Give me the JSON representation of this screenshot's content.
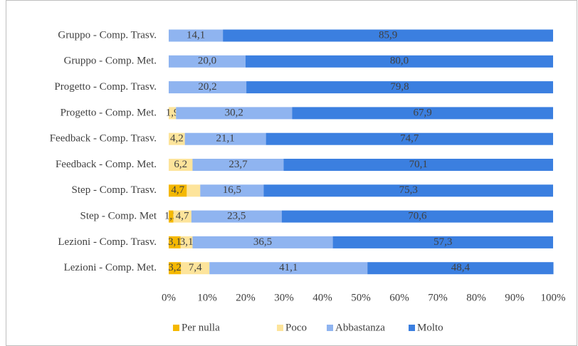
{
  "chart_data": {
    "type": "stacked_barh",
    "categories": [
      "Gruppo - Comp. Trasv.",
      "Gruppo - Comp. Met.",
      "Progetto - Comp. Trasv.",
      "Progetto - Comp. Met.",
      "Feedback - Comp. Trasv.",
      "Feedback - Comp. Met.",
      "Step - Comp. Trasv.",
      "Step - Comp. Met",
      "Lezioni - Comp. Trasv.",
      "Lezioni - Comp. Met."
    ],
    "series": [
      {
        "name": "Per nulla",
        "color": "#f5b800",
        "values": [
          0,
          0,
          0,
          0,
          0,
          0,
          4.7,
          1.2,
          3.1,
          3.2
        ],
        "value_labels": [
          null,
          null,
          null,
          null,
          null,
          null,
          "4,7",
          "1,2",
          "3,1",
          "3,2"
        ]
      },
      {
        "name": "Poco",
        "color": "#fde49b",
        "values": [
          0,
          0,
          0,
          1.9,
          4.2,
          6.2,
          3.5,
          4.7,
          3.1,
          7.4
        ],
        "value_labels": [
          null,
          null,
          null,
          "1,9",
          "4,2",
          "6,2",
          null,
          "4,7",
          "3,1",
          "7,4"
        ]
      },
      {
        "name": "Abbastanza",
        "color": "#8fb4f0",
        "values": [
          14.1,
          20.0,
          20.2,
          30.2,
          21.1,
          23.7,
          16.5,
          23.5,
          36.5,
          41.1
        ],
        "value_labels": [
          "14,1",
          "20,0",
          "20,2",
          "30,2",
          "21,1",
          "23,7",
          "16,5",
          "23,5",
          "36,5",
          "41,1"
        ]
      },
      {
        "name": "Molto",
        "color": "#3b7fe0",
        "values": [
          85.9,
          80.0,
          79.8,
          67.9,
          74.7,
          70.1,
          75.3,
          70.6,
          57.3,
          48.4
        ],
        "value_labels": [
          "85,9",
          "80,0",
          "79,8",
          "67,9",
          "74,7",
          "70,1",
          "75,3",
          "70,6",
          "57,3",
          "48,4"
        ]
      }
    ],
    "xlim": [
      0,
      100
    ],
    "xticks": [
      {
        "value": 0,
        "label": "0%"
      },
      {
        "value": 10,
        "label": "10%"
      },
      {
        "value": 20,
        "label": "20%"
      },
      {
        "value": 30,
        "label": "30%"
      },
      {
        "value": 40,
        "label": "40%"
      },
      {
        "value": 50,
        "label": "50%"
      },
      {
        "value": 60,
        "label": "60%"
      },
      {
        "value": 70,
        "label": "70%"
      },
      {
        "value": 80,
        "label": "80%"
      },
      {
        "value": 90,
        "label": "90%"
      },
      {
        "value": 100,
        "label": "100%"
      }
    ],
    "legend": "bottom"
  }
}
